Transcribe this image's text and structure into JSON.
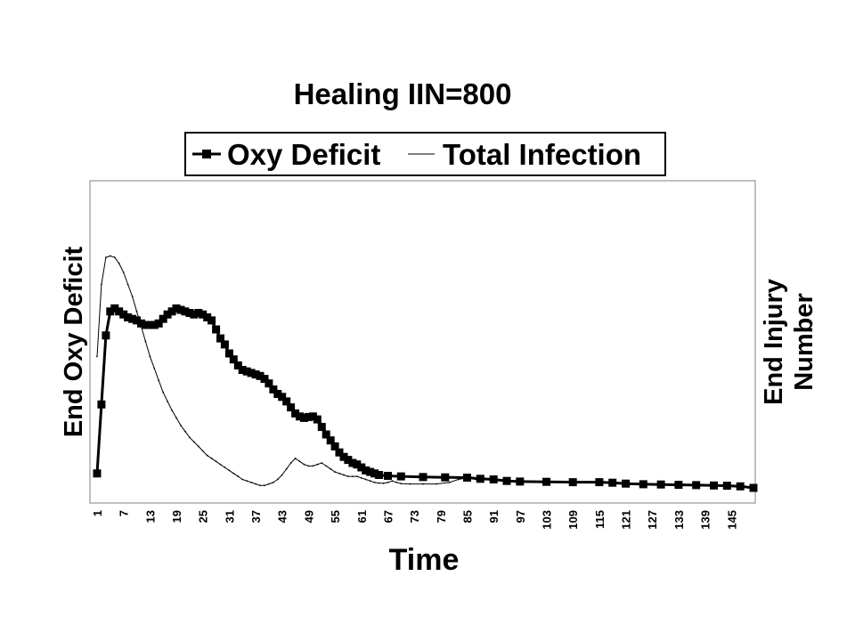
{
  "chart_data": {
    "type": "line",
    "title": "Healing IIN=800",
    "xlabel": "Time",
    "ylabel": "End Oxy Deficit",
    "y2label_line1": "End Injury",
    "y2label_line2": "Number",
    "legend_position": "top",
    "grid": false,
    "x_range": [
      1,
      150
    ],
    "x_ticks": [
      "1",
      "7",
      "13",
      "19",
      "25",
      "31",
      "37",
      "43",
      "49",
      "55",
      "61",
      "67",
      "73",
      "79",
      "85",
      "91",
      "97",
      "103",
      "109",
      "115",
      "121",
      "127",
      "133",
      "139",
      "145"
    ],
    "series": [
      {
        "name": "Oxy Deficit",
        "marker": "square",
        "line_width": "thick",
        "points": [
          [
            1,
            0.06
          ],
          [
            2,
            0.29
          ],
          [
            3,
            0.52
          ],
          [
            4,
            0.6
          ],
          [
            5,
            0.61
          ],
          [
            6,
            0.6
          ],
          [
            7,
            0.59
          ],
          [
            8,
            0.58
          ],
          [
            9,
            0.575
          ],
          [
            10,
            0.57
          ],
          [
            11,
            0.56
          ],
          [
            12,
            0.555
          ],
          [
            13,
            0.555
          ],
          [
            14,
            0.555
          ],
          [
            15,
            0.56
          ],
          [
            16,
            0.575
          ],
          [
            17,
            0.59
          ],
          [
            18,
            0.6
          ],
          [
            19,
            0.61
          ],
          [
            20,
            0.605
          ],
          [
            21,
            0.6
          ],
          [
            22,
            0.595
          ],
          [
            23,
            0.59
          ],
          [
            24,
            0.595
          ],
          [
            25,
            0.59
          ],
          [
            26,
            0.58
          ],
          [
            27,
            0.57
          ],
          [
            28,
            0.54
          ],
          [
            29,
            0.51
          ],
          [
            30,
            0.49
          ],
          [
            31,
            0.46
          ],
          [
            32,
            0.44
          ],
          [
            33,
            0.42
          ],
          [
            34,
            0.405
          ],
          [
            35,
            0.4
          ],
          [
            36,
            0.395
          ],
          [
            37,
            0.39
          ],
          [
            38,
            0.385
          ],
          [
            39,
            0.375
          ],
          [
            40,
            0.36
          ],
          [
            41,
            0.34
          ],
          [
            42,
            0.325
          ],
          [
            43,
            0.315
          ],
          [
            44,
            0.3
          ],
          [
            45,
            0.28
          ],
          [
            46,
            0.26
          ],
          [
            47,
            0.25
          ],
          [
            48,
            0.245
          ],
          [
            49,
            0.248
          ],
          [
            50,
            0.25
          ],
          [
            51,
            0.24
          ],
          [
            52,
            0.215
          ],
          [
            53,
            0.19
          ],
          [
            54,
            0.17
          ],
          [
            55,
            0.15
          ],
          [
            56,
            0.13
          ],
          [
            57,
            0.115
          ],
          [
            58,
            0.105
          ],
          [
            59,
            0.095
          ],
          [
            60,
            0.09
          ],
          [
            61,
            0.08
          ],
          [
            62,
            0.07
          ],
          [
            63,
            0.065
          ],
          [
            64,
            0.06
          ],
          [
            65,
            0.055
          ],
          [
            67,
            0.052
          ],
          [
            70,
            0.05
          ],
          [
            75,
            0.048
          ],
          [
            80,
            0.047
          ],
          [
            85,
            0.046
          ],
          [
            88,
            0.042
          ],
          [
            91,
            0.04
          ],
          [
            94,
            0.035
          ],
          [
            97,
            0.033
          ],
          [
            103,
            0.032
          ],
          [
            109,
            0.031
          ],
          [
            115,
            0.031
          ],
          [
            118,
            0.029
          ],
          [
            121,
            0.026
          ],
          [
            125,
            0.024
          ],
          [
            129,
            0.023
          ],
          [
            133,
            0.022
          ],
          [
            137,
            0.021
          ],
          [
            141,
            0.02
          ],
          [
            144,
            0.019
          ],
          [
            147,
            0.017
          ],
          [
            150,
            0.012
          ]
        ]
      },
      {
        "name": "Total Infection",
        "marker": "none",
        "line_width": "thin",
        "points": [
          [
            1,
            0.45
          ],
          [
            2,
            0.69
          ],
          [
            3,
            0.78
          ],
          [
            4,
            0.785
          ],
          [
            5,
            0.78
          ],
          [
            6,
            0.76
          ],
          [
            7,
            0.73
          ],
          [
            8,
            0.69
          ],
          [
            9,
            0.65
          ],
          [
            10,
            0.6
          ],
          [
            11,
            0.55
          ],
          [
            12,
            0.5
          ],
          [
            13,
            0.45
          ],
          [
            14,
            0.41
          ],
          [
            15,
            0.37
          ],
          [
            16,
            0.33
          ],
          [
            17,
            0.3
          ],
          [
            18,
            0.27
          ],
          [
            19,
            0.245
          ],
          [
            20,
            0.22
          ],
          [
            21,
            0.2
          ],
          [
            22,
            0.18
          ],
          [
            23,
            0.165
          ],
          [
            24,
            0.15
          ],
          [
            25,
            0.135
          ],
          [
            26,
            0.12
          ],
          [
            27,
            0.11
          ],
          [
            28,
            0.1
          ],
          [
            29,
            0.09
          ],
          [
            30,
            0.08
          ],
          [
            31,
            0.07
          ],
          [
            32,
            0.06
          ],
          [
            33,
            0.05
          ],
          [
            34,
            0.04
          ],
          [
            35,
            0.035
          ],
          [
            36,
            0.03
          ],
          [
            37,
            0.025
          ],
          [
            38,
            0.02
          ],
          [
            39,
            0.02
          ],
          [
            40,
            0.025
          ],
          [
            41,
            0.03
          ],
          [
            42,
            0.04
          ],
          [
            43,
            0.055
          ],
          [
            44,
            0.075
          ],
          [
            45,
            0.095
          ],
          [
            46,
            0.11
          ],
          [
            47,
            0.1
          ],
          [
            48,
            0.09
          ],
          [
            49,
            0.085
          ],
          [
            50,
            0.085
          ],
          [
            51,
            0.09
          ],
          [
            52,
            0.095
          ],
          [
            53,
            0.085
          ],
          [
            54,
            0.075
          ],
          [
            55,
            0.065
          ],
          [
            56,
            0.06
          ],
          [
            57,
            0.055
          ],
          [
            58,
            0.05
          ],
          [
            59,
            0.05
          ],
          [
            60,
            0.05
          ],
          [
            61,
            0.045
          ],
          [
            62,
            0.04
          ],
          [
            63,
            0.035
          ],
          [
            64,
            0.03
          ],
          [
            65,
            0.028
          ],
          [
            66,
            0.027
          ],
          [
            67,
            0.03
          ],
          [
            68,
            0.035
          ],
          [
            69,
            0.03
          ],
          [
            70,
            0.026
          ],
          [
            72,
            0.025
          ],
          [
            75,
            0.025
          ],
          [
            78,
            0.025
          ],
          [
            81,
            0.03
          ],
          [
            83,
            0.04
          ],
          [
            85,
            0.045
          ],
          [
            87,
            0.04
          ],
          [
            88,
            0.035
          ]
        ]
      }
    ]
  }
}
